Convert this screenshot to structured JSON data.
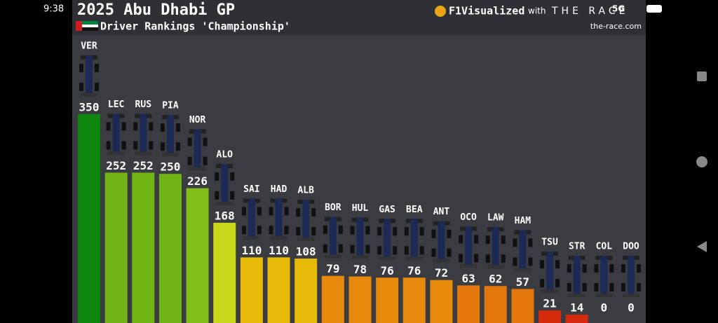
{
  "status_bar": {
    "time": "9:38",
    "network": "5G"
  },
  "branding": {
    "logo": "F1Visualized",
    "with": "with",
    "partner": "THE RACE",
    "site": "the-race.com"
  },
  "chart_data": {
    "type": "bar",
    "title": "2025 Abu Dhabi GP",
    "subtitle": "Driver Rankings 'Championship'",
    "categories": [
      "VER",
      "LEC",
      "RUS",
      "PIA",
      "NOR",
      "ALO",
      "SAI",
      "HAD",
      "ALB",
      "BOR",
      "HUL",
      "GAS",
      "BEA",
      "ANT",
      "OCO",
      "LAW",
      "HAM",
      "TSU",
      "STR",
      "COL",
      "DOO"
    ],
    "values": [
      350,
      252,
      252,
      250,
      226,
      168,
      110,
      110,
      108,
      79,
      78,
      76,
      76,
      72,
      63,
      62,
      57,
      21,
      14,
      0,
      0
    ],
    "colors": [
      "#0e870e",
      "#70b416",
      "#70b416",
      "#70b416",
      "#82be1a",
      "#c9d81a",
      "#e7ba0a",
      "#e7ba0a",
      "#e7ba0a",
      "#e78a0c",
      "#e78a0c",
      "#e78a0c",
      "#e78a0c",
      "#e78a0c",
      "#e5780c",
      "#e5780c",
      "#e5780c",
      "#d62a0c",
      "#d62a0c",
      "#d62a0c",
      "#d62a0c"
    ],
    "ylim": [
      0,
      350
    ]
  }
}
